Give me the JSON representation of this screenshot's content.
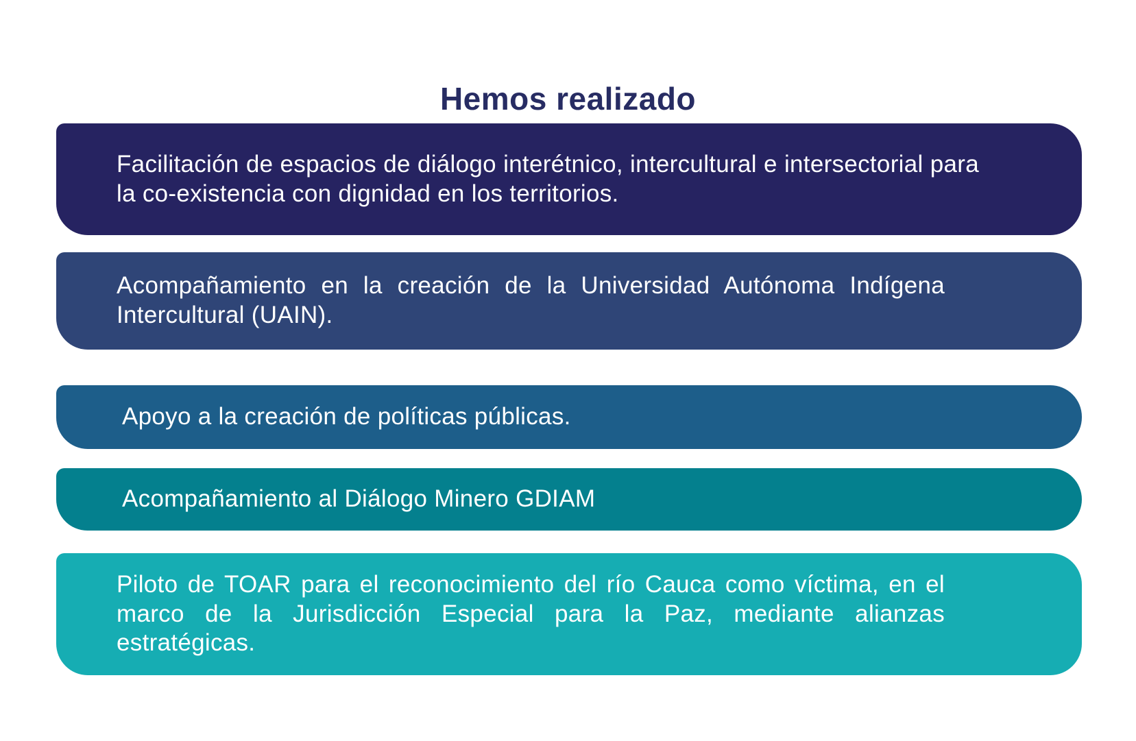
{
  "title": "Hemos realizado",
  "colors": {
    "title_text": "#272c63",
    "banner_text": "#ffffff",
    "background": "#ffffff",
    "banner_1": "#262361",
    "banner_2": "#2f4577",
    "banner_3": "#1d5e8a",
    "banner_4": "#04808e",
    "banner_5": "#16adb3"
  },
  "banners": [
    {
      "text": "Facilitación de espacios de diálogo interétnico, intercultural e intersectorial para la co-existencia con dignidad en los territorios."
    },
    {
      "text": "Acompañamiento en la creación de la Universidad Autónoma Indígena Intercultural (UAIN)."
    },
    {
      "text": "Apoyo a la creación de políticas públicas."
    },
    {
      "text": "Acompañamiento al Diálogo Minero GDIAM"
    },
    {
      "text": "Piloto de TOAR para el reconocimiento del río Cauca como víctima, en el marco de la Jurisdicción Especial para la Paz, mediante alianzas estratégicas."
    }
  ]
}
